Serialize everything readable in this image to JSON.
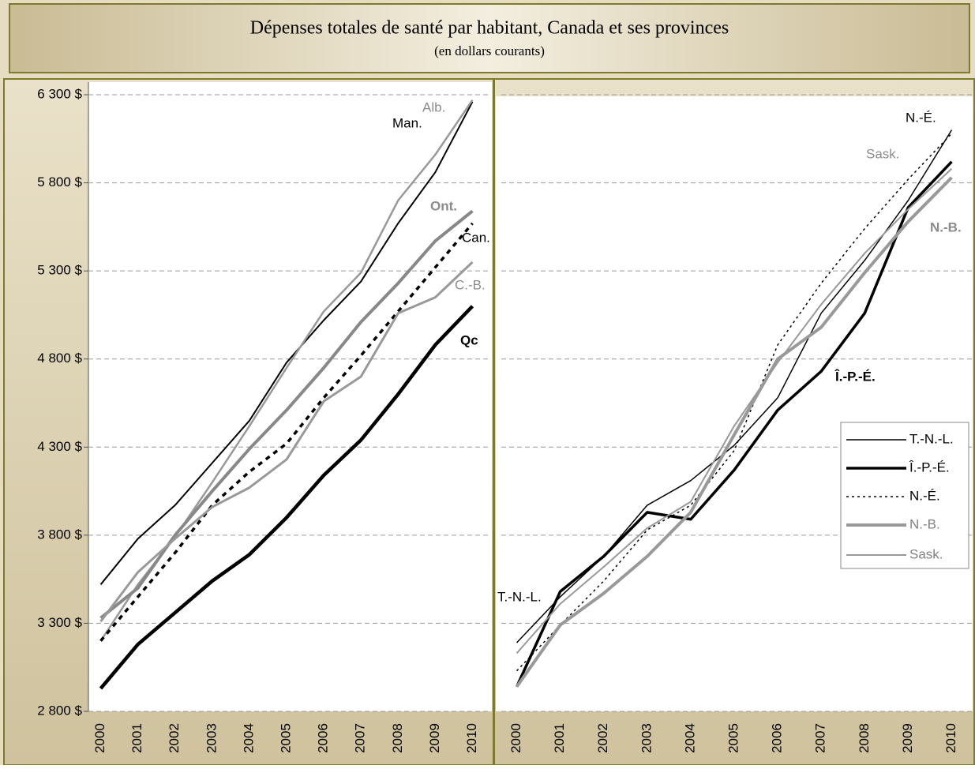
{
  "title": "Dépenses totales de santé par habitant, Canada et ses provinces",
  "subtitle": "(en dollars courants)",
  "chart_data": [
    {
      "type": "line",
      "categories": [
        "2000",
        "2001",
        "2002",
        "2003",
        "2004",
        "2005",
        "2006",
        "2007",
        "2008",
        "2009",
        "2010"
      ],
      "ylim": [
        2800,
        6300
      ],
      "yticks": [
        {
          "value": 2800,
          "label": "2 800 $"
        },
        {
          "value": 3300,
          "label": "3 300 $"
        },
        {
          "value": 3800,
          "label": "3 800 $"
        },
        {
          "value": 4300,
          "label": "4 300 $"
        },
        {
          "value": 4800,
          "label": "4 800 $"
        },
        {
          "value": 5300,
          "label": "5 300 $"
        },
        {
          "value": 5800,
          "label": "5 800 $"
        },
        {
          "value": 6300,
          "label": "6 300 $"
        }
      ],
      "grid": true,
      "series": [
        {
          "name": "Man.",
          "color": "#000000",
          "width": 2,
          "dash": "none",
          "values": [
            3520,
            3780,
            3970,
            4210,
            4450,
            4780,
            5020,
            5240,
            5570,
            5860,
            6260
          ]
        },
        {
          "name": "Alb.",
          "color": "#999999",
          "width": 2.5,
          "dash": "none",
          "values": [
            3200,
            3520,
            3790,
            4100,
            4420,
            4750,
            5070,
            5290,
            5700,
            5960,
            6270
          ]
        },
        {
          "name": "Ont.",
          "color": "#888888",
          "width": 4,
          "dash": "none",
          "values": [
            3330,
            3500,
            3800,
            4050,
            4290,
            4510,
            4750,
            5010,
            5230,
            5470,
            5640
          ]
        },
        {
          "name": "Can.",
          "color": "#000000",
          "width": 3.5,
          "dash": "6,6",
          "values": [
            3200,
            3450,
            3700,
            3970,
            4160,
            4320,
            4580,
            4820,
            5070,
            5320,
            5570
          ]
        },
        {
          "name": "C.-B.",
          "color": "#999999",
          "width": 3,
          "dash": "none",
          "values": [
            3310,
            3590,
            3780,
            3960,
            4070,
            4230,
            4560,
            4700,
            5060,
            5150,
            5350
          ]
        },
        {
          "name": "Qc",
          "color": "#000000",
          "width": 4.5,
          "dash": "none",
          "values": [
            2930,
            3180,
            3360,
            3540,
            3690,
            3900,
            4140,
            4340,
            4600,
            4880,
            5100
          ]
        }
      ]
    },
    {
      "type": "line",
      "categories": [
        "2000",
        "2001",
        "2002",
        "2003",
        "2004",
        "2005",
        "2006",
        "2007",
        "2008",
        "2009",
        "2010"
      ],
      "ylim": [
        2800,
        6300
      ],
      "yticks": [
        2800,
        3300,
        3800,
        4300,
        4800,
        5300,
        5800,
        6300
      ],
      "grid": true,
      "legend": "right",
      "series": [
        {
          "name": "T.-N.-L.",
          "color": "#000000",
          "width": 1.5,
          "dash": "none",
          "values": [
            3190,
            3450,
            3680,
            3970,
            4110,
            4310,
            4580,
            5060,
            5360,
            5700,
            6100
          ]
        },
        {
          "name": "Î.-P.-É.",
          "color": "#000000",
          "width": 3.5,
          "dash": "none",
          "values": [
            2940,
            3480,
            3680,
            3930,
            3890,
            4170,
            4510,
            4730,
            5060,
            5660,
            5920
          ]
        },
        {
          "name": "N.-É.",
          "color": "#000000",
          "width": 1.5,
          "dash": "3,4",
          "values": [
            3030,
            3290,
            3540,
            3830,
            3970,
            4280,
            4880,
            5230,
            5540,
            5820,
            6080
          ]
        },
        {
          "name": "N.-B.",
          "color": "#999999",
          "width": 4,
          "dash": "none",
          "values": [
            2940,
            3290,
            3470,
            3680,
            3930,
            4370,
            4800,
            4980,
            5290,
            5580,
            5830
          ]
        },
        {
          "name": "Sask.",
          "color": "#999999",
          "width": 2,
          "dash": "none",
          "values": [
            3130,
            3410,
            3620,
            3840,
            3990,
            4420,
            4780,
            5110,
            5400,
            5650,
            5880
          ]
        }
      ]
    }
  ]
}
